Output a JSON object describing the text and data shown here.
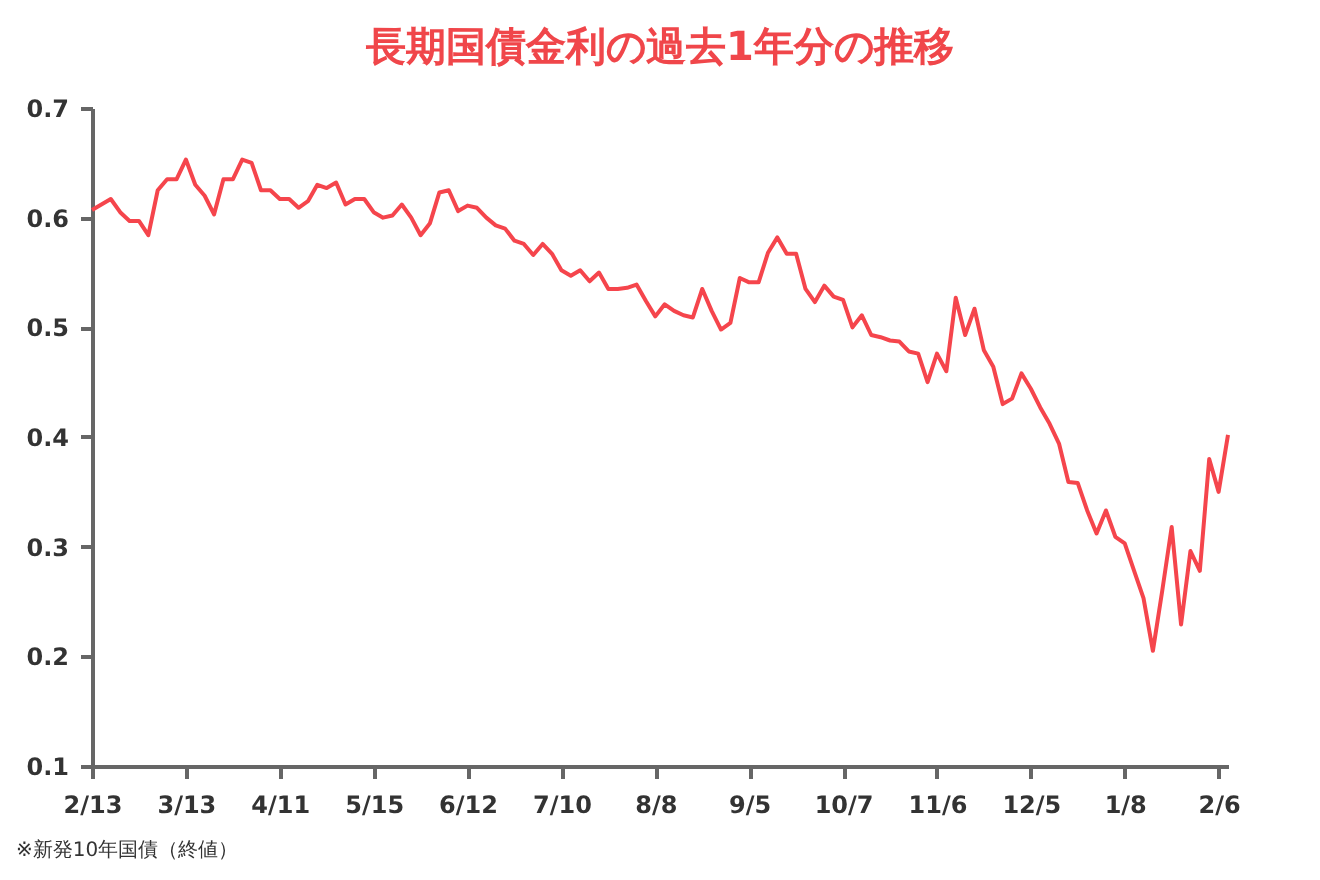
{
  "chart_data": {
    "type": "line",
    "title": "長期国債金利の過去1年分の推移",
    "categories": [
      "2/13",
      null,
      null,
      null,
      null,
      null,
      null,
      null,
      null,
      null,
      "3/13",
      null,
      null,
      null,
      null,
      null,
      null,
      null,
      null,
      null,
      "4/11",
      null,
      null,
      null,
      null,
      null,
      null,
      null,
      null,
      null,
      "5/15",
      null,
      null,
      null,
      null,
      null,
      null,
      null,
      null,
      null,
      "6/12",
      null,
      null,
      null,
      null,
      null,
      null,
      null,
      null,
      null,
      "7/10",
      null,
      null,
      null,
      null,
      null,
      null,
      null,
      null,
      null,
      "8/8",
      null,
      null,
      null,
      null,
      null,
      null,
      null,
      null,
      null,
      "9/5",
      null,
      null,
      null,
      null,
      null,
      null,
      null,
      null,
      null,
      "10/7",
      null,
      null,
      null,
      null,
      null,
      null,
      null,
      null,
      null,
      "11/6",
      null,
      null,
      null,
      null,
      null,
      null,
      null,
      null,
      null,
      "12/5",
      null,
      null,
      null,
      null,
      null,
      null,
      null,
      null,
      null,
      "1/8",
      null,
      null,
      null,
      null,
      null,
      null,
      null,
      null,
      null,
      "2/6",
      null
    ],
    "series": [
      {
        "color": "#f5454c",
        "values": [
          0.607,
          0.612,
          0.617,
          0.605,
          0.597,
          0.597,
          0.584,
          0.625,
          0.635,
          0.635,
          0.653,
          0.63,
          0.62,
          0.603,
          0.635,
          0.635,
          0.653,
          0.65,
          0.625,
          0.625,
          0.617,
          0.617,
          0.609,
          0.615,
          0.63,
          0.627,
          0.632,
          0.612,
          0.617,
          0.617,
          0.605,
          0.6,
          0.602,
          0.612,
          0.6,
          0.584,
          0.595,
          0.623,
          0.625,
          0.606,
          0.611,
          0.609,
          0.6,
          0.593,
          0.59,
          0.579,
          0.576,
          0.566,
          0.576,
          0.567,
          0.552,
          0.547,
          0.552,
          0.542,
          0.55,
          0.535,
          0.535,
          0.536,
          0.539,
          0.524,
          0.51,
          0.521,
          0.515,
          0.511,
          0.509,
          0.535,
          0.515,
          0.498,
          0.504,
          0.545,
          0.541,
          0.541,
          0.568,
          0.582,
          0.567,
          0.567,
          0.535,
          0.523,
          0.538,
          0.528,
          0.525,
          0.5,
          0.511,
          0.493,
          0.491,
          0.488,
          0.487,
          0.478,
          0.476,
          0.45,
          0.476,
          0.46,
          0.527,
          0.493,
          0.517,
          0.479,
          0.464,
          0.43,
          0.435,
          0.458,
          0.444,
          0.427,
          0.412,
          0.394,
          0.359,
          0.358,
          0.333,
          0.312,
          0.333,
          0.309,
          0.303,
          0.278,
          0.253,
          0.205,
          0.26,
          0.318,
          0.229,
          0.296,
          0.278,
          0.38,
          0.35,
          0.402
        ]
      }
    ],
    "ylim": [
      0.1,
      0.7
    ],
    "yticks": [
      0.1,
      0.2,
      0.3,
      0.4,
      0.5,
      0.6,
      0.7
    ],
    "annotations": [
      "※新発10年国債（終値）"
    ]
  }
}
